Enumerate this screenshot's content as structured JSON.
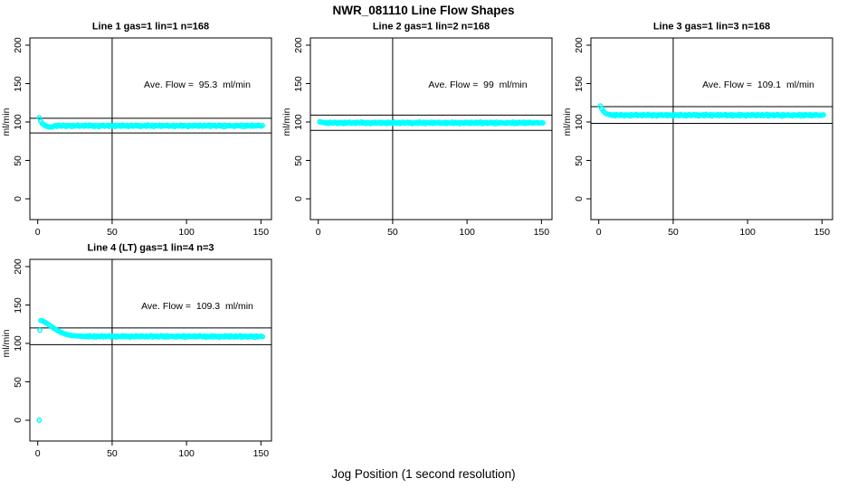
{
  "figure": {
    "title": "NWR_081110  Line Flow Shapes",
    "xlabel": "Jog Position (1 second resolution)",
    "background": "#ffffff"
  },
  "style": {
    "point_color": "#00ffff",
    "axis_color": "#000000",
    "text_color": "#000000"
  },
  "chart_data": [
    {
      "type": "scatter",
      "panel": "top-left",
      "title": "Line 1 gas=1 lin=1 n=168",
      "ylabel": "ml/min",
      "annotation": "Ave. Flow =  95.3  ml/min",
      "ave_flow": 95.3,
      "x_ticks": [
        0,
        50,
        100,
        150
      ],
      "y_ticks": [
        0,
        50,
        100,
        150,
        200
      ],
      "x_range": [
        0,
        150
      ],
      "y_range": [
        0,
        200
      ],
      "vline_x": 50,
      "hlines": [
        104.8,
        85.8
      ],
      "x_start": 1,
      "x_step": 1,
      "y": [
        105.5,
        100.8,
        98.2,
        96.6,
        95.4,
        94.4,
        93.8,
        93.5,
        93.3,
        93.5,
        94.8,
        95.6,
        94.2,
        95.9,
        95.1,
        94.5,
        96.0,
        95.3,
        94.1,
        95.7,
        94.9,
        95.4,
        93.9,
        95.8,
        94.6,
        95.2,
        96.1,
        94.4,
        95.0,
        95.5,
        94.3,
        95.9,
        95.0,
        94.6,
        96.2,
        94.8,
        95.4,
        94.1,
        95.7,
        95.2,
        93.8,
        95.5,
        94.9,
        96.0,
        94.5,
        95.1,
        95.8,
        94.2,
        95.6,
        94.7,
        95.3,
        94.0,
        95.9,
        94.8,
        95.5,
        94.3,
        96.1,
        95.0,
        94.6,
        95.7,
        94.1,
        95.4,
        95.9,
        94.4,
        95.2,
        96.0,
        94.7,
        95.6,
        93.9,
        95.1,
        94.9,
        95.7,
        94.3,
        96.2,
        95.0,
        94.5,
        95.8,
        94.0,
        95.5,
        95.2,
        94.7,
        96.0,
        94.2,
        95.6,
        94.8,
        95.3,
        95.9,
        94.4,
        95.1,
        94.6,
        95.8,
        94.1,
        95.4,
        95.0,
        94.7,
        96.1,
        94.3,
        95.7,
        94.9,
        95.3,
        93.9,
        95.6,
        95.1,
        94.5,
        96.0,
        94.8,
        95.5,
        94.2,
        95.9,
        95.0,
        94.4,
        95.8,
        94.6,
        95.2,
        96.2,
        94.0,
        95.5,
        94.9,
        95.7,
        94.3,
        95.1,
        96.0,
        94.7,
        95.4,
        93.8,
        95.9,
        94.5,
        95.2,
        95.6,
        94.8,
        95.0,
        94.2,
        95.7,
        94.9,
        95.3,
        94.6,
        96.1,
        93.9,
        95.5,
        94.4,
        95.8,
        95.1,
        94.7,
        95.9,
        94.3,
        95.4,
        94.8,
        96.0,
        95.2,
        94.5,
        95.3
      ]
    },
    {
      "type": "scatter",
      "panel": "top-middle",
      "title": "Line 2 gas=1 lin=2 n=168",
      "ylabel": "ml/min",
      "annotation": "Ave. Flow =  99  ml/min",
      "ave_flow": 99,
      "x_ticks": [
        0,
        50,
        100,
        150
      ],
      "y_ticks": [
        0,
        50,
        100,
        150,
        200
      ],
      "x_range": [
        0,
        150
      ],
      "y_range": [
        0,
        200
      ],
      "vline_x": 50,
      "hlines": [
        108.9,
        89.1
      ],
      "x_start": 1,
      "x_step": 1,
      "y": [
        100.3,
        99.9,
        99.5,
        99.2,
        98.6,
        99.4,
        98.1,
        99.7,
        98.9,
        98.4,
        99.8,
        99.1,
        97.9,
        99.5,
        98.7,
        99.2,
        97.8,
        99.6,
        98.5,
        99.0,
        99.9,
        98.3,
        98.8,
        99.3,
        98.2,
        99.7,
        98.8,
        98.5,
        100.0,
        98.6,
        99.2,
        97.9,
        99.5,
        99.0,
        97.7,
        99.3,
        98.7,
        99.8,
        98.4,
        98.9,
        99.6,
        98.1,
        99.4,
        98.6,
        99.1,
        97.8,
        99.7,
        98.6,
        99.3,
        98.2,
        99.9,
        98.8,
        98.4,
        99.5,
        97.9,
        99.2,
        99.7,
        98.3,
        99.0,
        99.8,
        98.5,
        99.4,
        97.8,
        98.9,
        98.7,
        99.5,
        98.1,
        100.0,
        98.8,
        98.3,
        99.6,
        97.8,
        99.3,
        99.0,
        98.5,
        99.8,
        98.0,
        99.4,
        98.6,
        99.1,
        99.7,
        98.2,
        98.9,
        98.4,
        99.6,
        97.9,
        99.2,
        98.8,
        98.5,
        99.9,
        98.1,
        99.5,
        98.7,
        99.1,
        97.7,
        99.4,
        98.9,
        98.3,
        99.8,
        98.6,
        99.3,
        98.0,
        99.7,
        98.8,
        98.2,
        99.6,
        98.4,
        99.0,
        100.0,
        97.8,
        99.3,
        98.7,
        99.5,
        98.1,
        98.9,
        99.8,
        98.5,
        99.2,
        97.6,
        99.7,
        98.3,
        99.0,
        99.4,
        98.6,
        98.8,
        98.0,
        99.5,
        98.7,
        99.1,
        98.4,
        99.9,
        97.7,
        99.3,
        98.2,
        99.6,
        98.9,
        98.5,
        99.7,
        98.1,
        99.2,
        98.6,
        99.8,
        99.0,
        98.3,
        99.1,
        98.7,
        99.4,
        98.9,
        98.5,
        99.2,
        98.8
      ]
    },
    {
      "type": "scatter",
      "panel": "top-right",
      "title": "Line 3 gas=1 lin=3 n=168",
      "ylabel": "ml/min",
      "annotation": "Ave. Flow =  109.1  ml/min",
      "ave_flow": 109.1,
      "x_ticks": [
        0,
        50,
        100,
        150
      ],
      "y_ticks": [
        0,
        50,
        100,
        150,
        200
      ],
      "x_range": [
        0,
        150
      ],
      "y_range": [
        0,
        200
      ],
      "vline_x": 50,
      "hlines": [
        120.0,
        98.2
      ],
      "x_start": 1,
      "x_step": 1,
      "y": [
        121.0,
        117.2,
        114.3,
        112.3,
        111.0,
        110.2,
        109.7,
        109.4,
        108.6,
        109.4,
        108.1,
        109.7,
        108.9,
        108.4,
        109.8,
        109.1,
        107.9,
        109.5,
        108.7,
        109.2,
        107.8,
        109.6,
        108.5,
        109.0,
        109.9,
        108.3,
        108.8,
        109.3,
        108.2,
        109.7,
        108.8,
        108.5,
        110.0,
        108.6,
        109.2,
        107.9,
        109.5,
        109.0,
        107.7,
        109.3,
        108.7,
        109.8,
        108.4,
        108.9,
        109.6,
        108.1,
        109.4,
        108.6,
        109.1,
        107.8,
        109.7,
        108.6,
        109.3,
        108.2,
        109.9,
        108.8,
        108.4,
        109.5,
        107.9,
        109.2,
        109.7,
        108.3,
        109.0,
        109.8,
        108.5,
        109.4,
        107.8,
        108.9,
        108.7,
        109.5,
        108.1,
        110.0,
        108.8,
        108.3,
        109.6,
        107.8,
        109.3,
        109.0,
        108.5,
        109.8,
        108.0,
        109.4,
        108.6,
        109.1,
        109.7,
        108.2,
        108.9,
        108.4,
        109.6,
        107.9,
        109.2,
        108.8,
        108.5,
        109.9,
        108.1,
        109.5,
        108.7,
        109.1,
        107.7,
        109.4,
        108.9,
        108.3,
        109.8,
        108.6,
        109.3,
        108.0,
        109.7,
        108.8,
        108.2,
        109.6,
        108.4,
        109.0,
        110.0,
        107.8,
        109.3,
        108.7,
        109.5,
        108.1,
        108.9,
        109.8,
        108.5,
        109.2,
        107.6,
        109.7,
        108.3,
        109.0,
        109.4,
        108.6,
        108.8,
        108.0,
        109.5,
        108.7,
        109.1,
        108.4,
        109.9,
        107.7,
        109.3,
        108.2,
        109.6,
        108.9,
        108.5,
        109.7,
        108.1,
        109.2,
        108.6,
        109.8,
        109.0,
        108.3,
        109.1,
        108.7,
        109.3
      ]
    },
    {
      "type": "scatter",
      "panel": "bottom-left",
      "title": "Line 4 (LT) gas=1 lin=4 n=3",
      "ylabel": "ml/min",
      "annotation": "Ave. Flow =  109.3  ml/min",
      "ave_flow": 109.3,
      "x_ticks": [
        0,
        50,
        100,
        150
      ],
      "y_ticks": [
        0,
        50,
        100,
        150,
        200
      ],
      "x_range": [
        0,
        150
      ],
      "y_range": [
        0,
        200
      ],
      "vline_x": 50,
      "hlines": [
        120.2,
        98.4
      ],
      "x_start": 2,
      "x_step": 1,
      "extra_points": [
        [
          1,
          0
        ],
        [
          1.4,
          117.0
        ]
      ],
      "y": [
        129.8,
        129.3,
        128.5,
        127.4,
        126.2,
        124.9,
        123.5,
        122.1,
        120.8,
        119.5,
        118.3,
        117.1,
        116.0,
        115.0,
        114.1,
        113.3,
        112.6,
        111.9,
        111.4,
        110.9,
        110.6,
        110.3,
        110.1,
        109.9,
        109.8,
        109.6,
        109.5,
        109.4,
        109.3,
        109.2,
        108.9,
        109.7,
        108.4,
        110.0,
        109.1,
        108.6,
        109.9,
        108.2,
        109.5,
        109.2,
        108.7,
        110.1,
        108.3,
        109.6,
        108.8,
        109.3,
        109.9,
        108.5,
        109.1,
        108.7,
        109.8,
        108.2,
        109.4,
        109.0,
        108.7,
        110.1,
        108.4,
        109.7,
        108.9,
        109.3,
        108.1,
        109.6,
        109.1,
        108.5,
        110.0,
        108.8,
        109.5,
        108.3,
        109.9,
        109.0,
        108.4,
        109.8,
        108.6,
        109.2,
        110.2,
        108.0,
        109.5,
        108.9,
        109.7,
        108.3,
        109.1,
        110.0,
        108.7,
        109.4,
        108.1,
        109.9,
        108.5,
        109.2,
        109.6,
        108.8,
        109.0,
        108.2,
        109.7,
        108.9,
        109.3,
        108.6,
        110.1,
        107.9,
        109.5,
        108.4,
        109.8,
        109.1,
        108.7,
        109.9,
        108.3,
        109.4,
        108.8,
        110.0,
        109.2,
        108.5,
        109.6,
        108.1,
        109.3,
        108.9,
        108.6,
        110.0,
        108.2,
        109.6,
        108.8,
        109.2,
        107.9,
        109.5,
        109.0,
        108.4,
        109.9,
        108.7,
        109.4,
        108.1,
        109.8,
        108.9,
        108.3,
        109.7,
        108.5,
        109.1,
        110.1,
        107.9,
        109.4,
        108.8,
        109.6,
        108.2,
        109.0,
        109.9,
        108.6,
        109.3,
        107.8,
        109.8,
        108.4,
        109.1,
        109.5,
        108.7
      ]
    }
  ]
}
